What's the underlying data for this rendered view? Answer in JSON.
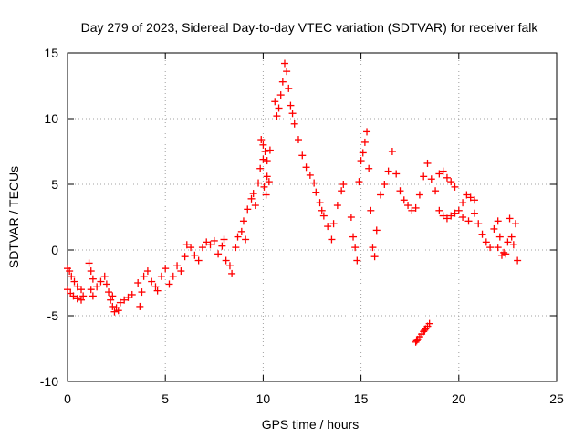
{
  "chart_data": {
    "type": "scatter",
    "title": "Day 279 of 2023, Sidereal Day-to-day VTEC variation (SDTVAR) for receiver falk",
    "xlabel": "GPS time / hours",
    "ylabel": "SDTVAR / TECUs",
    "xlim": [
      0,
      25
    ],
    "ylim": [
      -10,
      15
    ],
    "xticks": [
      0,
      5,
      10,
      15,
      20,
      25
    ],
    "yticks": [
      -10,
      -5,
      0,
      5,
      10,
      15
    ],
    "xtick_labels": [
      "0",
      "5",
      "10",
      "15",
      "20",
      "25"
    ],
    "ytick_labels": [
      "-10",
      "-5",
      "0",
      "5",
      "10",
      "15"
    ],
    "grid": true,
    "marker": "plus",
    "series_color": "#ff0000",
    "series": [
      {
        "name": "SDTVAR",
        "points": [
          [
            0.0,
            -1.4
          ],
          [
            0.1,
            -1.6
          ],
          [
            0.2,
            -2.0
          ],
          [
            0.35,
            -2.4
          ],
          [
            0.5,
            -2.8
          ],
          [
            0.7,
            -3.0
          ],
          [
            0.0,
            -3.0
          ],
          [
            0.15,
            -3.3
          ],
          [
            0.3,
            -3.5
          ],
          [
            0.5,
            -3.7
          ],
          [
            0.7,
            -3.8
          ],
          [
            0.8,
            -3.5
          ],
          [
            1.1,
            -1.0
          ],
          [
            1.2,
            -1.6
          ],
          [
            1.3,
            -2.2
          ],
          [
            1.2,
            -3.0
          ],
          [
            1.3,
            -3.5
          ],
          [
            1.5,
            -2.8
          ],
          [
            1.7,
            -2.4
          ],
          [
            1.9,
            -2.0
          ],
          [
            2.0,
            -2.6
          ],
          [
            2.1,
            -3.2
          ],
          [
            2.2,
            -3.8
          ],
          [
            2.3,
            -4.3
          ],
          [
            2.4,
            -4.7
          ],
          [
            2.5,
            -4.4
          ],
          [
            2.7,
            -4.0
          ],
          [
            2.9,
            -3.8
          ],
          [
            3.1,
            -3.6
          ],
          [
            3.3,
            -3.4
          ],
          [
            2.3,
            -3.5
          ],
          [
            2.6,
            -4.6
          ],
          [
            3.6,
            -2.5
          ],
          [
            3.7,
            -4.3
          ],
          [
            3.8,
            -3.2
          ],
          [
            3.9,
            -2.0
          ],
          [
            4.1,
            -1.6
          ],
          [
            4.3,
            -2.4
          ],
          [
            4.5,
            -2.8
          ],
          [
            4.6,
            -3.1
          ],
          [
            4.8,
            -2.0
          ],
          [
            5.0,
            -1.4
          ],
          [
            5.2,
            -2.6
          ],
          [
            5.4,
            -2.0
          ],
          [
            5.6,
            -1.2
          ],
          [
            5.8,
            -1.6
          ],
          [
            6.0,
            -0.5
          ],
          [
            6.1,
            0.4
          ],
          [
            6.3,
            0.2
          ],
          [
            6.5,
            -0.4
          ],
          [
            6.7,
            -0.8
          ],
          [
            6.9,
            0.2
          ],
          [
            7.1,
            0.6
          ],
          [
            7.3,
            0.4
          ],
          [
            7.5,
            0.7
          ],
          [
            7.7,
            -0.3
          ],
          [
            7.9,
            0.3
          ],
          [
            8.0,
            0.8
          ],
          [
            8.1,
            -0.8
          ],
          [
            8.3,
            -1.2
          ],
          [
            8.4,
            -1.8
          ],
          [
            8.6,
            0.2
          ],
          [
            8.7,
            1.0
          ],
          [
            8.9,
            1.4
          ],
          [
            9.0,
            2.2
          ],
          [
            9.1,
            0.8
          ],
          [
            9.2,
            3.1
          ],
          [
            9.4,
            3.9
          ],
          [
            9.5,
            4.3
          ],
          [
            9.6,
            3.4
          ],
          [
            9.75,
            5.1
          ],
          [
            9.85,
            6.2
          ],
          [
            9.9,
            8.4
          ],
          [
            10.0,
            8.0
          ],
          [
            10.1,
            7.5
          ],
          [
            10.2,
            6.8
          ],
          [
            10.3,
            5.2
          ],
          [
            10.05,
            4.8
          ],
          [
            10.15,
            4.2
          ],
          [
            10.0,
            6.9
          ],
          [
            10.35,
            7.6
          ],
          [
            10.2,
            5.6
          ],
          [
            10.6,
            11.3
          ],
          [
            10.7,
            10.2
          ],
          [
            10.8,
            10.8
          ],
          [
            10.9,
            11.8
          ],
          [
            11.0,
            12.8
          ],
          [
            11.1,
            14.2
          ],
          [
            11.2,
            13.6
          ],
          [
            11.3,
            12.3
          ],
          [
            11.4,
            11.0
          ],
          [
            11.5,
            10.4
          ],
          [
            11.6,
            9.6
          ],
          [
            11.8,
            8.4
          ],
          [
            12.0,
            7.2
          ],
          [
            12.2,
            6.3
          ],
          [
            12.4,
            5.7
          ],
          [
            12.6,
            5.1
          ],
          [
            12.7,
            4.4
          ],
          [
            12.9,
            3.6
          ],
          [
            13.0,
            3.0
          ],
          [
            13.1,
            2.6
          ],
          [
            13.3,
            1.8
          ],
          [
            13.5,
            0.8
          ],
          [
            13.6,
            2.0
          ],
          [
            13.8,
            3.4
          ],
          [
            14.0,
            4.5
          ],
          [
            14.1,
            5.0
          ],
          [
            14.5,
            2.5
          ],
          [
            14.6,
            1.0
          ],
          [
            14.7,
            0.2
          ],
          [
            14.8,
            -0.8
          ],
          [
            14.9,
            5.2
          ],
          [
            15.0,
            6.8
          ],
          [
            15.1,
            7.4
          ],
          [
            15.2,
            8.2
          ],
          [
            15.3,
            9.0
          ],
          [
            15.4,
            6.2
          ],
          [
            15.5,
            3.0
          ],
          [
            15.6,
            0.2
          ],
          [
            15.7,
            -0.5
          ],
          [
            15.8,
            1.5
          ],
          [
            16.0,
            4.2
          ],
          [
            16.2,
            5.0
          ],
          [
            16.4,
            6.0
          ],
          [
            16.6,
            7.5
          ],
          [
            16.8,
            5.8
          ],
          [
            17.0,
            4.5
          ],
          [
            17.2,
            3.8
          ],
          [
            17.4,
            3.4
          ],
          [
            17.6,
            3.0
          ],
          [
            17.8,
            3.2
          ],
          [
            18.0,
            4.2
          ],
          [
            18.2,
            5.6
          ],
          [
            18.4,
            6.6
          ],
          [
            18.6,
            5.4
          ],
          [
            18.8,
            4.5
          ],
          [
            19.0,
            5.8
          ],
          [
            19.2,
            6.0
          ],
          [
            19.4,
            5.5
          ],
          [
            19.6,
            5.2
          ],
          [
            19.8,
            4.8
          ],
          [
            19.0,
            3.0
          ],
          [
            19.2,
            2.6
          ],
          [
            19.4,
            2.4
          ],
          [
            19.6,
            2.6
          ],
          [
            19.8,
            2.8
          ],
          [
            20.0,
            3.0
          ],
          [
            20.2,
            3.6
          ],
          [
            20.4,
            4.2
          ],
          [
            20.6,
            4.0
          ],
          [
            20.8,
            3.8
          ],
          [
            20.2,
            2.5
          ],
          [
            20.5,
            2.2
          ],
          [
            20.8,
            2.8
          ],
          [
            21.0,
            2.0
          ],
          [
            21.2,
            1.2
          ],
          [
            21.4,
            0.6
          ],
          [
            21.6,
            0.2
          ],
          [
            21.8,
            1.6
          ],
          [
            22.0,
            2.2
          ],
          [
            22.1,
            1.0
          ],
          [
            22.0,
            0.2
          ],
          [
            22.2,
            -0.4
          ],
          [
            22.3,
            -0.2
          ],
          [
            22.5,
            0.6
          ],
          [
            22.7,
            1.0
          ],
          [
            22.8,
            0.4
          ],
          [
            22.9,
            2.0
          ],
          [
            23.0,
            -0.8
          ],
          [
            22.6,
            2.4
          ],
          [
            22.4,
            -0.3
          ],
          [
            17.8,
            -7.0
          ],
          [
            17.9,
            -6.8
          ],
          [
            18.0,
            -6.6
          ],
          [
            18.1,
            -6.4
          ],
          [
            18.2,
            -6.2
          ],
          [
            18.3,
            -6.0
          ],
          [
            18.4,
            -5.8
          ],
          [
            18.5,
            -5.6
          ],
          [
            17.85,
            -6.9
          ],
          [
            18.25,
            -6.1
          ]
        ]
      }
    ]
  }
}
